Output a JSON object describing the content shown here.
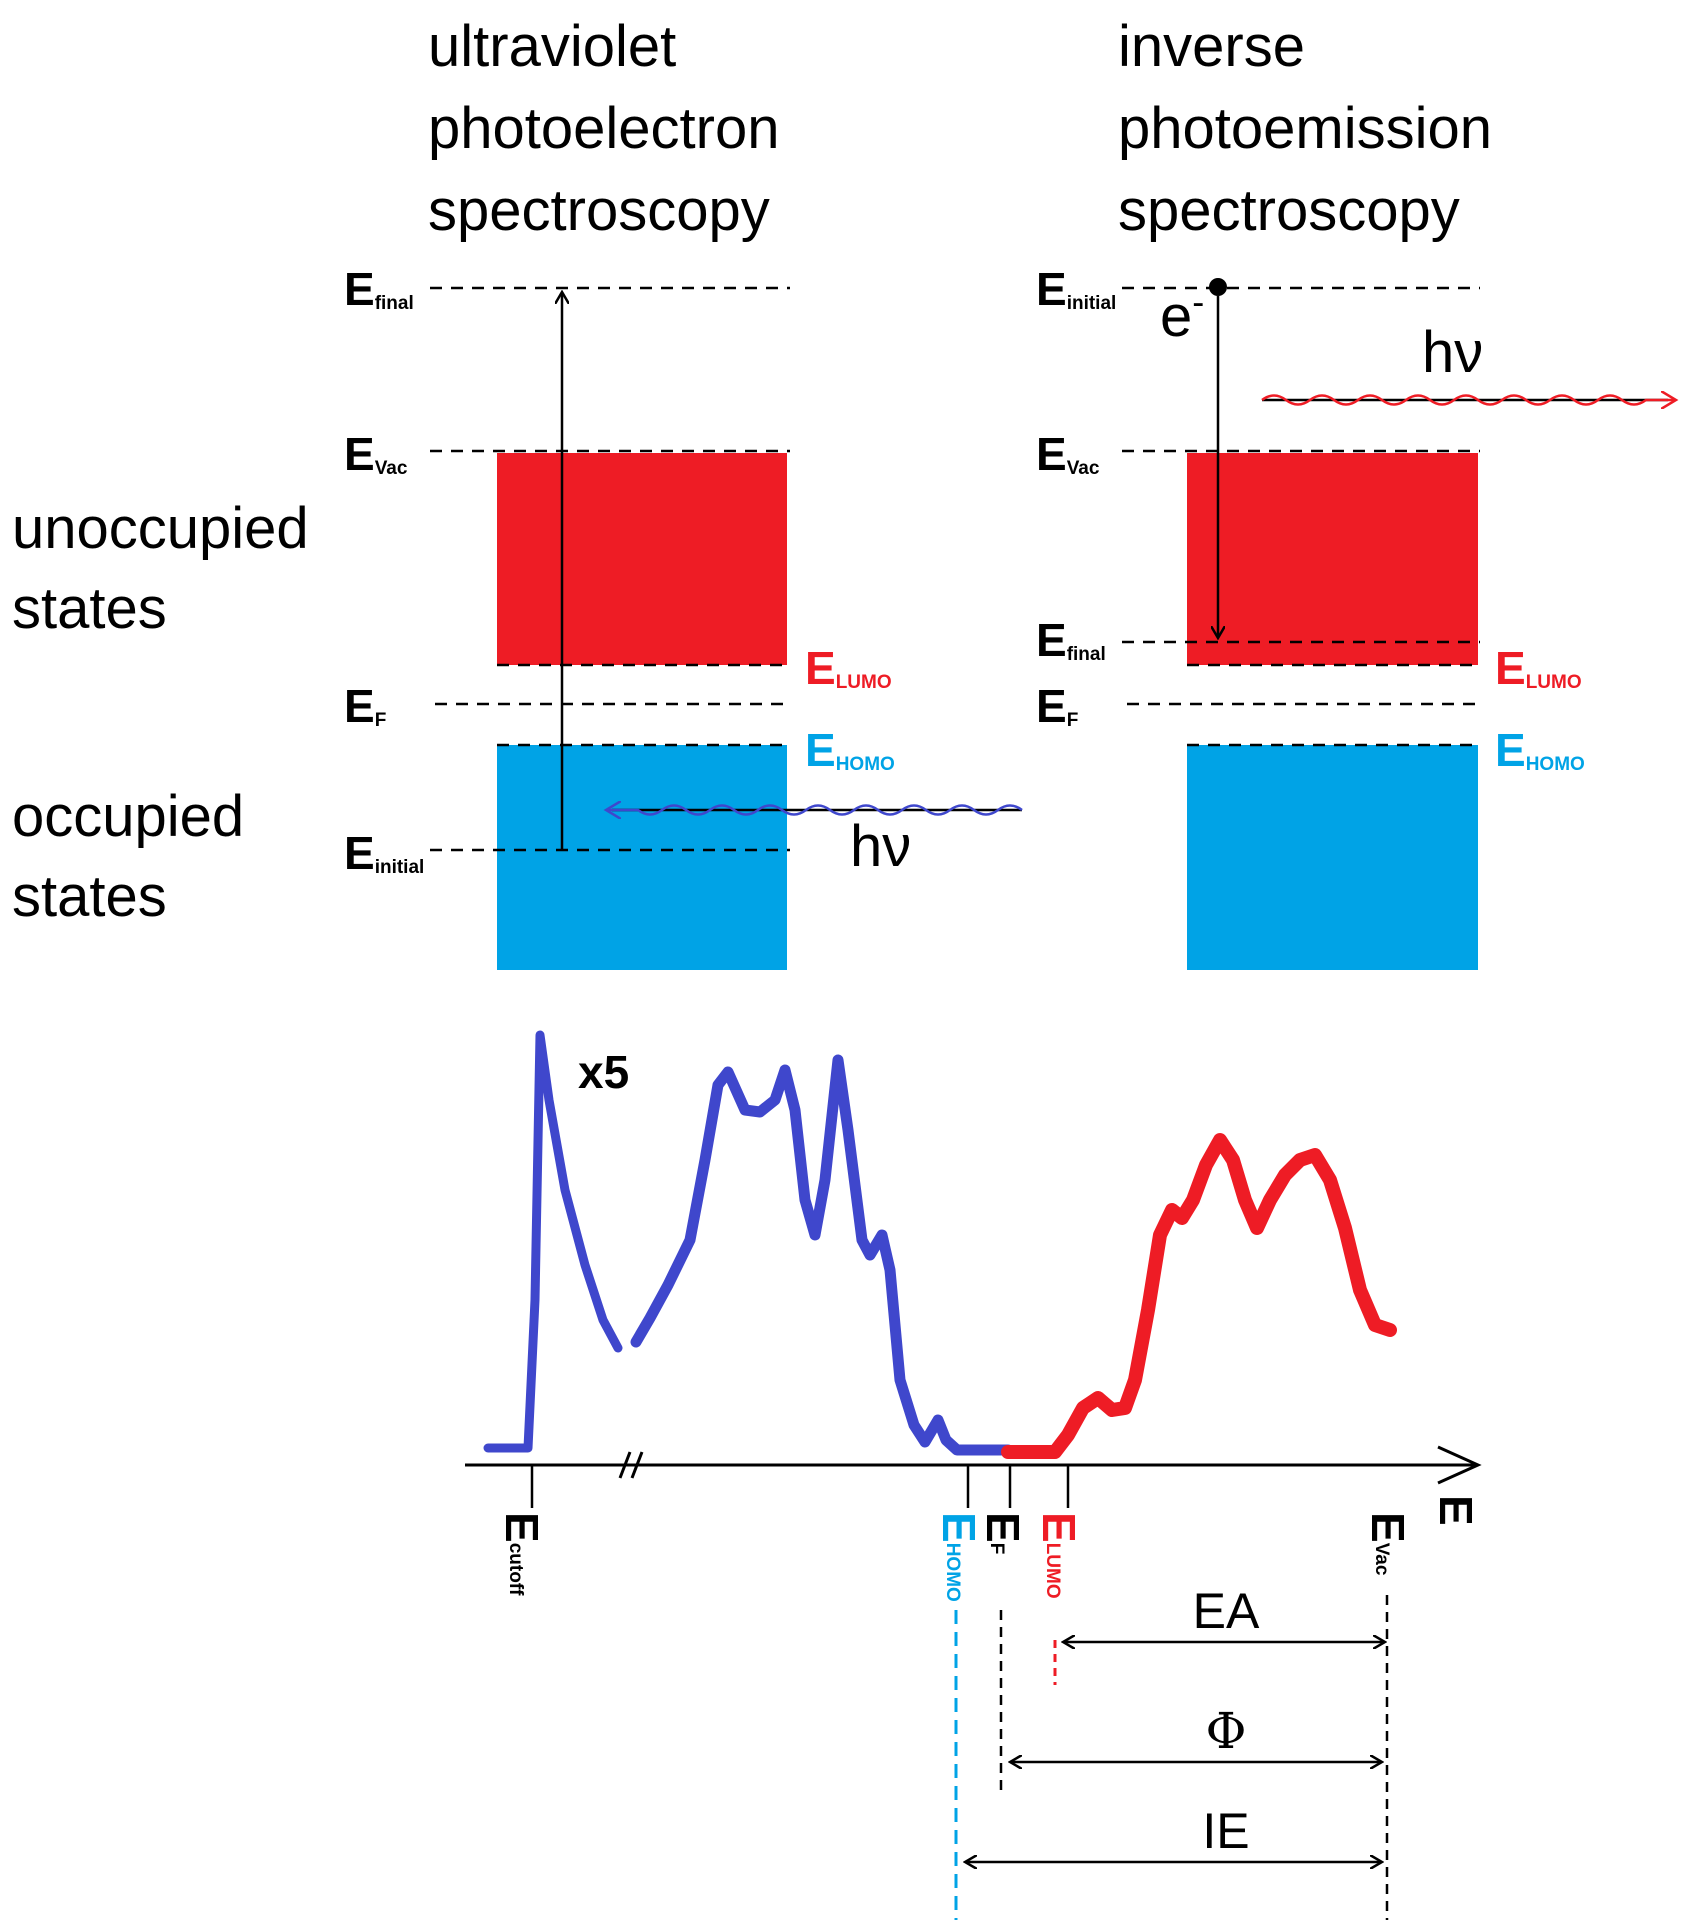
{
  "colors": {
    "unoccupied": "#ee1c25",
    "occupied": "#00a3e6",
    "ups_curve": "#3f47cc",
    "ips_curve": "#ee1c25",
    "line": "#000000"
  },
  "titles": {
    "ups": [
      "ultraviolet",
      "photoelectron",
      "spectroscopy"
    ],
    "ips": [
      "inverse",
      "photoemission",
      "spectroscopy"
    ]
  },
  "side_labels": {
    "unoccupied": [
      "unoccupied",
      "states"
    ],
    "occupied": [
      "occupied",
      "states"
    ]
  },
  "ups_levels": {
    "e_final": {
      "main": "E",
      "sub": "final"
    },
    "e_vac": {
      "main": "E",
      "sub": "Vac"
    },
    "e_f": {
      "main": "E",
      "sub": "F"
    },
    "e_initial": {
      "main": "E",
      "sub": "initial"
    },
    "e_lumo": {
      "main": "E",
      "sub": "LUMO"
    },
    "e_homo": {
      "main": "E",
      "sub": "HOMO"
    },
    "photon": "hν"
  },
  "ips_levels": {
    "e_initial": {
      "main": "E",
      "sub": "initial"
    },
    "e_vac": {
      "main": "E",
      "sub": "Vac"
    },
    "e_final": {
      "main": "E",
      "sub": "final"
    },
    "e_f": {
      "main": "E",
      "sub": "F"
    },
    "e_lumo": {
      "main": "E",
      "sub": "LUMO"
    },
    "e_homo": {
      "main": "E",
      "sub": "HOMO"
    },
    "electron": "e",
    "electron_sup": "-",
    "photon": "hν"
  },
  "spectrum": {
    "scale_label": "x5",
    "axis_label": "E",
    "ticks": {
      "e_cutoff": {
        "main": "E",
        "sub": "cutoff"
      },
      "e_homo": {
        "main": "E",
        "sub": "HOMO"
      },
      "e_f": {
        "main": "E",
        "sub": "F"
      },
      "e_lumo": {
        "main": "E",
        "sub": "LUMO"
      },
      "e_vac": {
        "main": "E",
        "sub": "Vac"
      }
    },
    "quantities": {
      "ea": "EA",
      "phi": "Φ",
      "ie": "IE"
    }
  }
}
